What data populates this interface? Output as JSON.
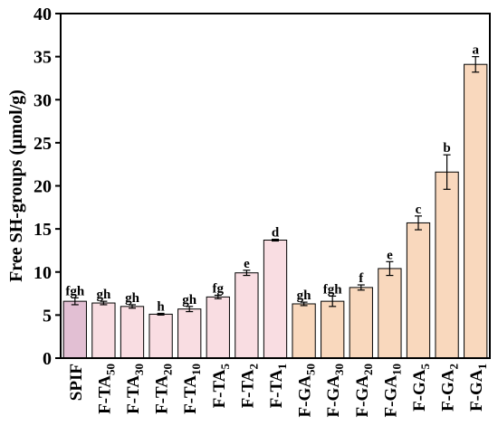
{
  "chart_data": {
    "type": "bar",
    "title": "",
    "xlabel": "",
    "ylabel": "Free SH-groups (μmol/g)",
    "ylim": [
      0,
      40
    ],
    "yticks": [
      0,
      5,
      10,
      15,
      20,
      25,
      30,
      35,
      40
    ],
    "grid": false,
    "bars": [
      {
        "base": "SPIF",
        "sub": "",
        "value": 6.6,
        "error": 0.4,
        "sig": "fgh",
        "color": "#e2bfd3"
      },
      {
        "base": "F-TA",
        "sub": "50",
        "value": 6.4,
        "error": 0.2,
        "sig": "gh",
        "color": "#f9dde2"
      },
      {
        "base": "F-TA",
        "sub": "30",
        "value": 6.0,
        "error": 0.2,
        "sig": "gh",
        "color": "#f9dde2"
      },
      {
        "base": "F-TA",
        "sub": "20",
        "value": 5.1,
        "error": 0.1,
        "sig": "h",
        "color": "#f9dde2"
      },
      {
        "base": "F-TA",
        "sub": "10",
        "value": 5.7,
        "error": 0.3,
        "sig": "gh",
        "color": "#f9dde2"
      },
      {
        "base": "F-TA",
        "sub": "5",
        "value": 7.1,
        "error": 0.2,
        "sig": "fg",
        "color": "#f9dde2"
      },
      {
        "base": "F-TA",
        "sub": "2",
        "value": 9.9,
        "error": 0.3,
        "sig": "e",
        "color": "#f9dde2"
      },
      {
        "base": "F-TA",
        "sub": "1",
        "value": 13.7,
        "error": 0.1,
        "sig": "d",
        "color": "#f9dde2"
      },
      {
        "base": "F-GA",
        "sub": "50",
        "value": 6.3,
        "error": 0.2,
        "sig": "gh",
        "color": "#f9d8bd"
      },
      {
        "base": "F-GA",
        "sub": "30",
        "value": 6.6,
        "error": 0.6,
        "sig": "fgh",
        "color": "#f9d8bd"
      },
      {
        "base": "F-GA",
        "sub": "20",
        "value": 8.2,
        "error": 0.3,
        "sig": "f",
        "color": "#f9d8bd"
      },
      {
        "base": "F-GA",
        "sub": "10",
        "value": 10.4,
        "error": 0.8,
        "sig": "e",
        "color": "#f9d8bd"
      },
      {
        "base": "F-GA",
        "sub": "5",
        "value": 15.7,
        "error": 0.8,
        "sig": "c",
        "color": "#f9d8bd"
      },
      {
        "base": "F-GA",
        "sub": "2",
        "value": 21.6,
        "error": 2.0,
        "sig": "b",
        "color": "#f9d8bd"
      },
      {
        "base": "F-GA",
        "sub": "1",
        "value": 34.1,
        "error": 0.9,
        "sig": "a",
        "color": "#f9d8bd"
      }
    ]
  }
}
